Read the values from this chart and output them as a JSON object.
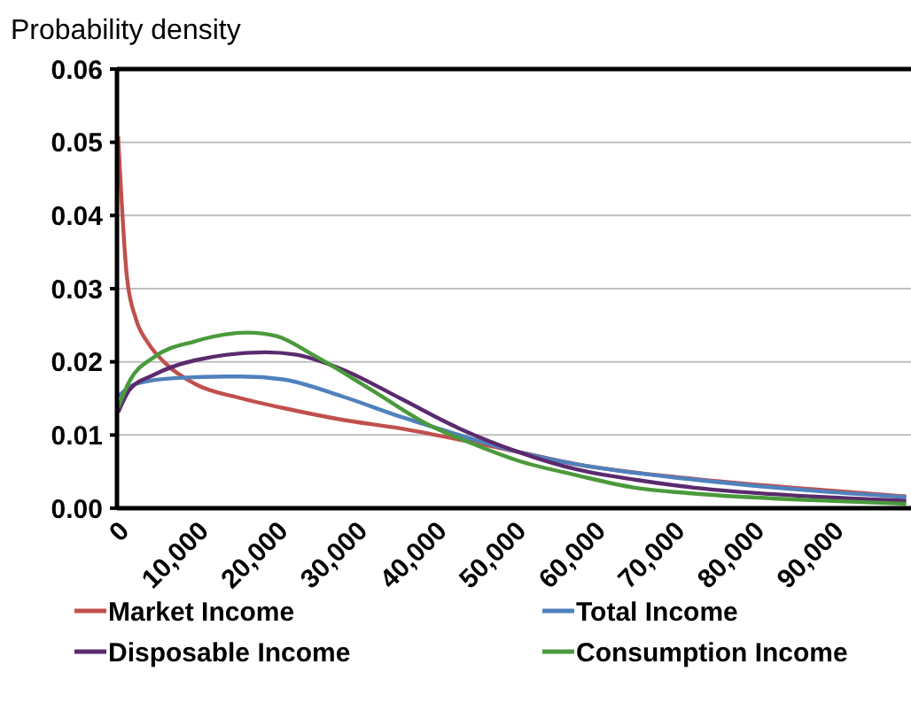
{
  "chart_data": {
    "type": "line",
    "ylabel": "Probability density",
    "xlim": [
      0,
      100000
    ],
    "ylim": [
      0,
      0.06
    ],
    "xticks": [
      {
        "value": 0,
        "label": "0"
      },
      {
        "value": 10000,
        "label": "10,000"
      },
      {
        "value": 20000,
        "label": "20,000"
      },
      {
        "value": 30000,
        "label": "30,000"
      },
      {
        "value": 40000,
        "label": "40,000"
      },
      {
        "value": 50000,
        "label": "50,000"
      },
      {
        "value": 60000,
        "label": "60,000"
      },
      {
        "value": 70000,
        "label": "70,000"
      },
      {
        "value": 80000,
        "label": "80,000"
      },
      {
        "value": 90000,
        "label": "90,000"
      }
    ],
    "yticks": [
      {
        "value": 0,
        "label": "0.00"
      },
      {
        "value": 0.01,
        "label": "0.01"
      },
      {
        "value": 0.02,
        "label": "0.02"
      },
      {
        "value": 0.03,
        "label": "0.03"
      },
      {
        "value": 0.04,
        "label": "0.04"
      },
      {
        "value": 0.05,
        "label": "0.05"
      },
      {
        "value": 0.06,
        "label": "0.06"
      }
    ],
    "grid": "y",
    "legend": "bottom",
    "marker": "none",
    "line_style": "solid",
    "series": [
      {
        "name": "Market Income",
        "color": "#c0504d",
        "x": [
          150,
          1260,
          2400,
          3900,
          6100,
          9800,
          15700,
          20900,
          28300,
          35700,
          41600,
          50500,
          57900,
          72700,
          87500,
          99400
        ],
        "values": [
          0.0508,
          0.0315,
          0.0258,
          0.0226,
          0.0198,
          0.017,
          0.015,
          0.0137,
          0.0121,
          0.0109,
          0.0097,
          0.0077,
          0.006,
          0.004,
          0.0026,
          0.0016
        ]
      },
      {
        "name": "Total Income",
        "color": "#4f81bd",
        "x": [
          150,
          2400,
          7600,
          15700,
          20900,
          28300,
          35700,
          41600,
          50500,
          57900,
          72700,
          87500,
          99400
        ],
        "values": [
          0.0153,
          0.017,
          0.0178,
          0.018,
          0.0176,
          0.0153,
          0.0125,
          0.0105,
          0.0077,
          0.006,
          0.0039,
          0.0024,
          0.0015
        ]
      },
      {
        "name": "Disposable Income",
        "color": "#5b2a6e",
        "x": [
          150,
          1600,
          4600,
          9800,
          18700,
          22400,
          28300,
          35700,
          43100,
          50500,
          57900,
          65200,
          72700,
          87500,
          99400
        ],
        "values": [
          0.0131,
          0.0162,
          0.0182,
          0.0202,
          0.0213,
          0.021,
          0.019,
          0.015,
          0.0109,
          0.0077,
          0.0053,
          0.0039,
          0.0028,
          0.0016,
          0.001
        ]
      },
      {
        "name": "Consumption Income",
        "color": "#4a9a3c",
        "x": [
          150,
          1600,
          4600,
          9800,
          16400,
          20100,
          24600,
          32000,
          39400,
          44600,
          50500,
          57900,
          65200,
          72700,
          87500,
          99400
        ],
        "values": [
          0.0138,
          0.0174,
          0.0206,
          0.0228,
          0.024,
          0.0235,
          0.021,
          0.0162,
          0.0113,
          0.0089,
          0.0065,
          0.0045,
          0.0028,
          0.002,
          0.0011,
          0.0006
        ]
      }
    ]
  }
}
